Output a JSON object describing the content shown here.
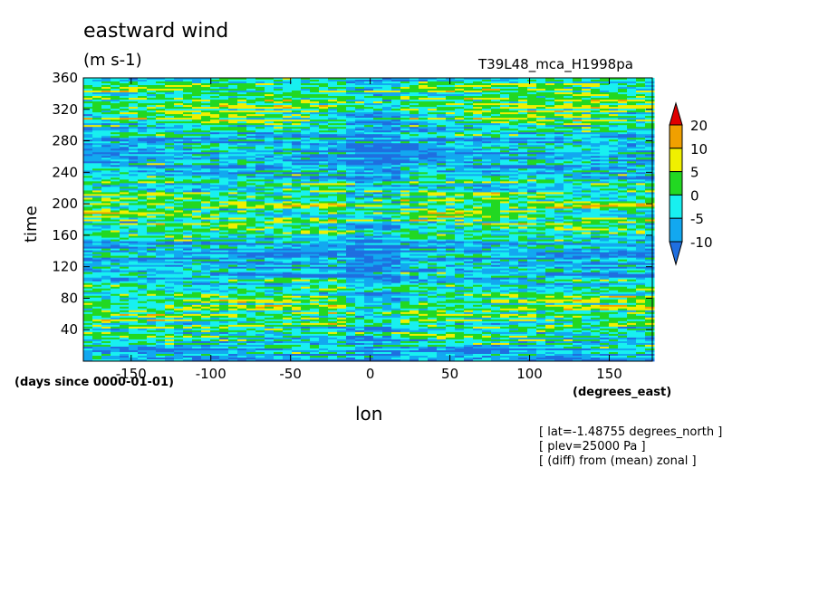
{
  "header": {
    "title": "eastward wind",
    "units": "(m s-1)",
    "run_name": "T39L48_mca_H1998pa"
  },
  "axes": {
    "xlabel": "lon",
    "ylabel": "time",
    "x_unit": "(degrees_east)",
    "y_unit": "(days since 0000-01-01)"
  },
  "notes": [
    "[ lat=-1.48755 degrees_north ]",
    "[ plev=25000 Pa ]",
    "[ (diff) from (mean) zonal ]"
  ],
  "colors": {
    "levels": [
      "#1f6fe0",
      "#12a8f0",
      "#18f0f0",
      "#22d822",
      "#f0f000",
      "#f0a000",
      "#e00000"
    ],
    "background": "#ffffff"
  },
  "chart_data": {
    "type": "heatmap",
    "title": "eastward wind",
    "xlabel": "lon",
    "ylabel": "time",
    "xlim": [
      -180,
      177
    ],
    "ylim": [
      0,
      360
    ],
    "x_ticks": [
      -150,
      -100,
      -50,
      0,
      50,
      100,
      150
    ],
    "x_tick_labels": [
      "-150",
      "-100",
      "-50",
      "0",
      "50",
      "100",
      "150"
    ],
    "y_ticks": [
      40,
      80,
      120,
      160,
      200,
      240,
      280,
      320,
      360
    ],
    "y_tick_labels": [
      "40",
      "80",
      "120",
      "160",
      "200",
      "240",
      "280",
      "320",
      "360"
    ],
    "colorbar": {
      "boundaries": [
        -10,
        -5,
        0,
        5,
        10,
        20
      ],
      "labels": [
        "20",
        "10",
        "5",
        "0",
        "-5",
        "-10"
      ],
      "extend": "both"
    },
    "grid": false
  }
}
